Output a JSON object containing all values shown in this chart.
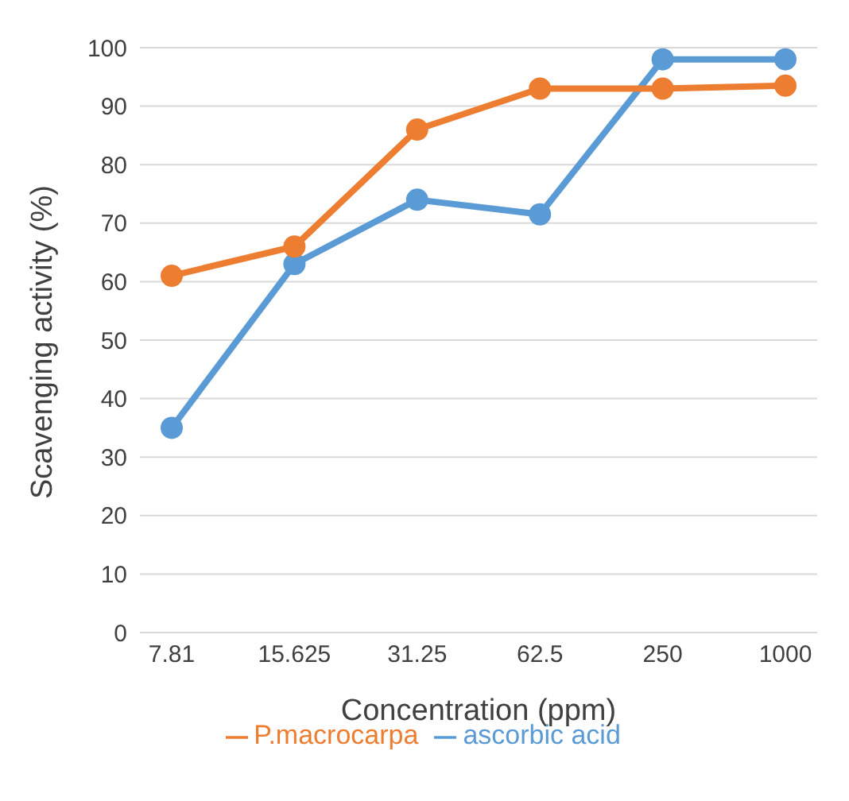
{
  "chart_data": {
    "type": "line",
    "xlabel": "Concentration (ppm)",
    "ylabel": "Scavenging activity (%)",
    "categories": [
      "7.81",
      "15.625",
      "31.25",
      "62.5",
      "250",
      "1000"
    ],
    "series": [
      {
        "name": "ascorbic acid",
        "color": "#5b9bd5",
        "values": [
          35,
          63,
          74,
          71.5,
          98,
          98
        ]
      },
      {
        "name": "P.macrocarpa",
        "color": "#ed7d31",
        "values": [
          61,
          66,
          86,
          93,
          93,
          93.5
        ]
      }
    ],
    "ylim": [
      0,
      100
    ],
    "yticks": [
      0,
      10,
      20,
      30,
      40,
      50,
      60,
      70,
      80,
      90,
      100
    ],
    "grid": "y",
    "legend": "bottom",
    "marker": "circle",
    "line_style": "solid"
  }
}
